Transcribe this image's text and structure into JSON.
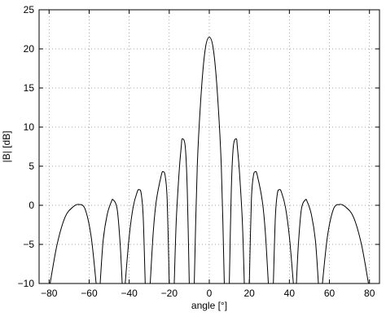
{
  "chart_data": {
    "type": "line",
    "title": "",
    "xlabel": "angle [°]",
    "ylabel": "|B| [dB]",
    "xlim": [
      -85,
      85
    ],
    "ylim": [
      -10,
      25
    ],
    "xticks": [
      -80,
      -60,
      -40,
      -20,
      0,
      20,
      40,
      60,
      80
    ],
    "yticks": [
      -10,
      -5,
      0,
      5,
      10,
      15,
      20,
      25
    ],
    "grid": true,
    "line_color": "#000000",
    "series": [
      {
        "lobes": [
          {
            "x": [
              -79.5,
              -76,
              -72,
              -68,
              -65,
              -62,
              -59,
              -56.5
            ],
            "y": [
              -10,
              -5,
              -1.5,
              -0.2,
              0.1,
              -0.5,
              -4,
              -10
            ]
          },
          {
            "x": [
              -54.5,
              -53,
              -51,
              -49,
              -48,
              -46,
              -44.5,
              -43.5
            ],
            "y": [
              -10,
              -4.5,
              -1.2,
              0.4,
              0.7,
              -0.5,
              -5,
              -10
            ]
          },
          {
            "x": [
              -42,
              -40,
              -38,
              -36,
              -35,
              -34,
              -33,
              -32
            ],
            "y": [
              -10,
              -4,
              -0.2,
              1.7,
              2,
              1.5,
              -1.5,
              -10
            ]
          },
          {
            "x": [
              -29.5,
              -28,
              -26.5,
              -24,
              -23,
              -22,
              -21,
              -20
            ],
            "y": [
              -10,
              -3.5,
              0.5,
              3.8,
              4.3,
              3.7,
              0.5,
              -10
            ]
          },
          {
            "x": [
              -17.5,
              -16.5,
              -15,
              -14,
              -13.5,
              -12,
              -11,
              -10
            ],
            "y": [
              -10,
              -2,
              4.5,
              7.5,
              8.5,
              7.5,
              2,
              -10
            ]
          },
          {
            "x": [
              -7.5,
              -6,
              -4,
              -2,
              0,
              2,
              4,
              6,
              7.5
            ],
            "y": [
              -10,
              5,
              14.5,
              20,
              21.5,
              20,
              14.5,
              5,
              -10
            ]
          },
          {
            "x": [
              10,
              11,
              12,
              13.5,
              14,
              15,
              16.5,
              17.5
            ],
            "y": [
              -10,
              2,
              7.5,
              8.5,
              7.5,
              4.5,
              -2,
              -10
            ]
          },
          {
            "x": [
              20,
              21,
              22,
              23,
              24,
              26.5,
              28,
              29.5
            ],
            "y": [
              -10,
              0.5,
              3.7,
              4.3,
              3.8,
              0.5,
              -3.5,
              -10
            ]
          },
          {
            "x": [
              32,
              33,
              34,
              35,
              36,
              38,
              40,
              42
            ],
            "y": [
              -10,
              -1.5,
              1.5,
              2,
              1.7,
              -0.2,
              -4,
              -10
            ]
          },
          {
            "x": [
              43.5,
              44.5,
              46,
              48,
              49,
              51,
              53,
              54.5
            ],
            "y": [
              -10,
              -5,
              -0.5,
              0.7,
              0.4,
              -1.2,
              -4.5,
              -10
            ]
          },
          {
            "x": [
              56.5,
              59,
              62,
              65,
              68,
              72,
              76,
              79.5
            ],
            "y": [
              -10,
              -4,
              -0.5,
              0.1,
              -0.2,
              -1.5,
              -5,
              -10
            ]
          }
        ]
      }
    ]
  }
}
